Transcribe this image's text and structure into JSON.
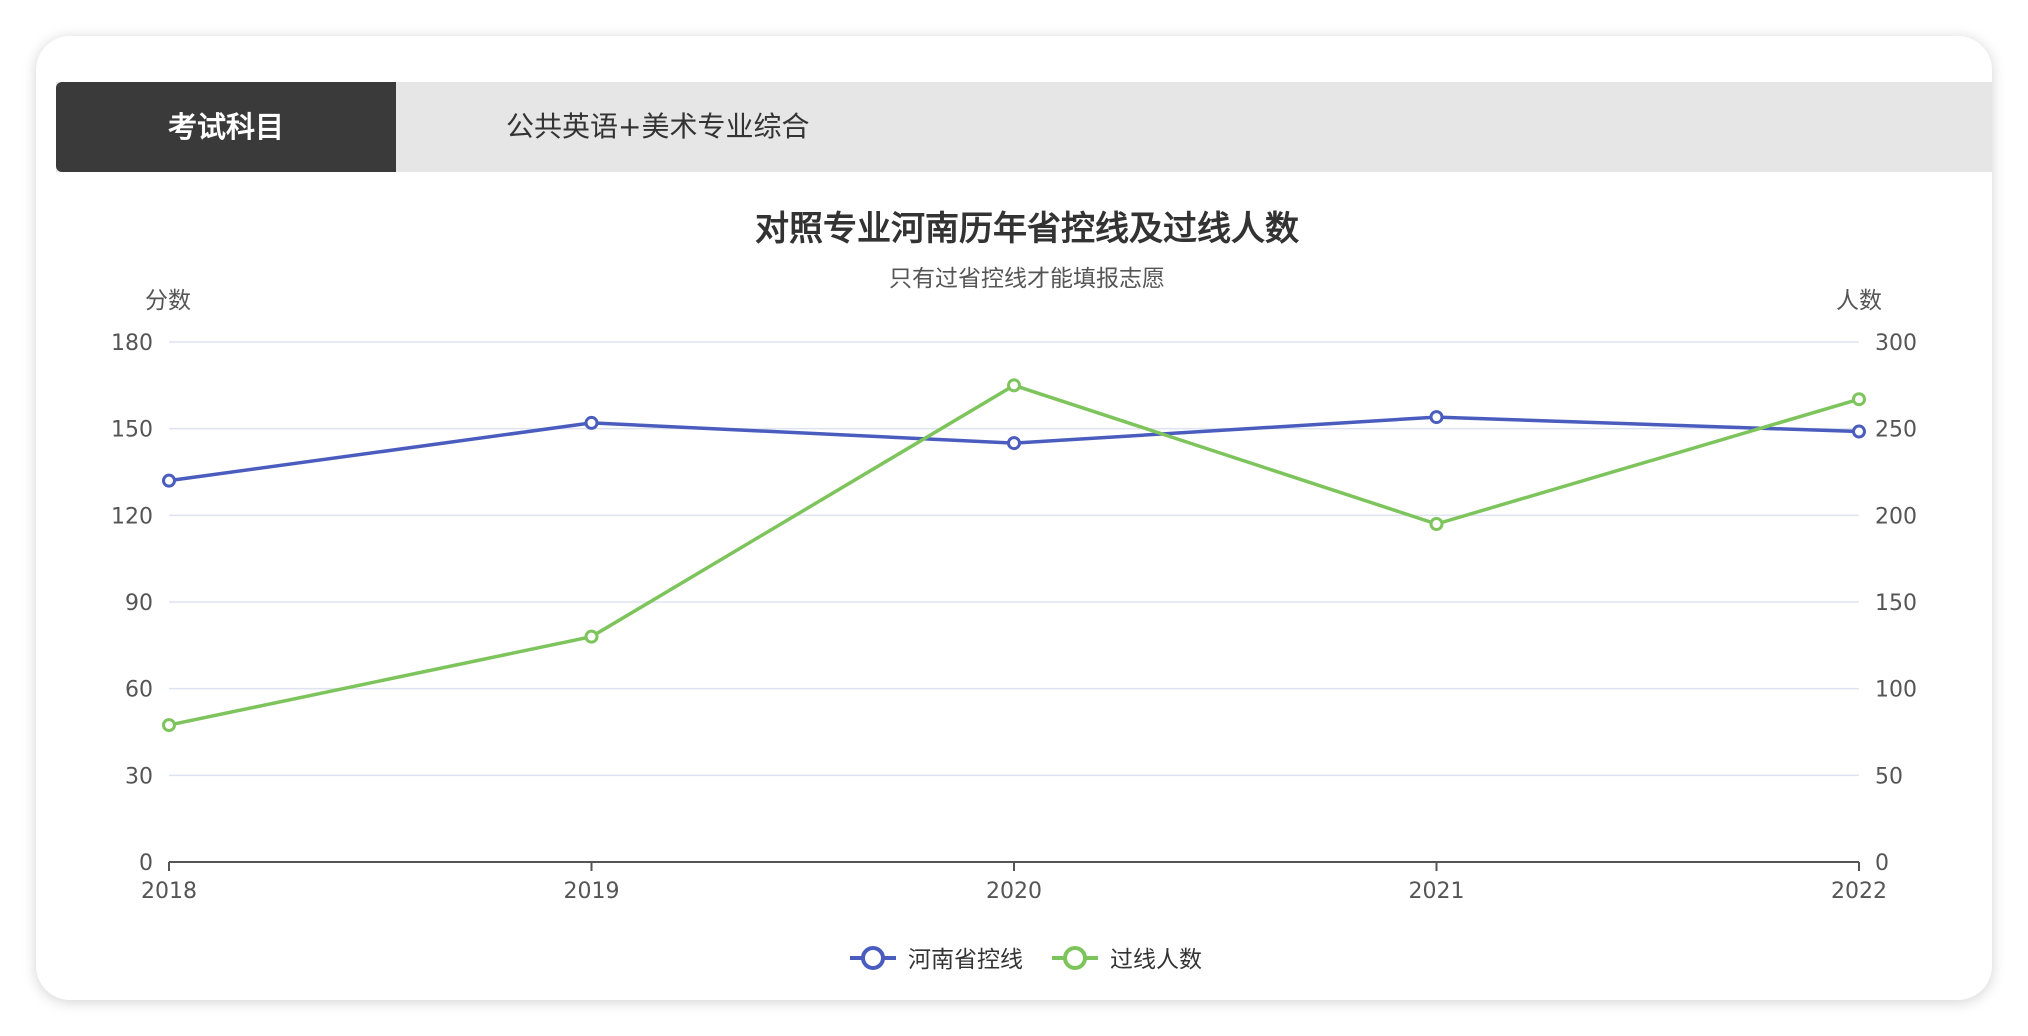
{
  "header": {
    "label": "考试科目",
    "value": "公共英语+美术专业综合"
  },
  "colors": {
    "series1": "#4a5dbf",
    "series2": "#7ec45c",
    "grid": "#dde3ef",
    "axis": "#555555",
    "text": "#555555",
    "title": "#333333"
  },
  "chart_data": {
    "type": "line",
    "title": "对照专业河南历年省控线及过线人数",
    "subtitle": "只有过省控线才能填报志愿",
    "x": [
      "2018",
      "2019",
      "2020",
      "2021",
      "2022"
    ],
    "y_left": {
      "name": "分数",
      "min": 0,
      "max": 180,
      "ticks": [
        0,
        30,
        60,
        90,
        120,
        150,
        180
      ]
    },
    "y_right": {
      "name": "人数",
      "min": 0,
      "max": 300,
      "ticks": [
        0,
        50,
        100,
        150,
        200,
        250,
        300
      ]
    },
    "series": [
      {
        "name": "河南省控线",
        "axis": "left",
        "values": [
          132,
          152,
          145,
          154,
          149
        ]
      },
      {
        "name": "过线人数",
        "axis": "right",
        "values": [
          79,
          130,
          275,
          195,
          267
        ]
      }
    ],
    "grid": true,
    "legend": "bottom-center"
  }
}
